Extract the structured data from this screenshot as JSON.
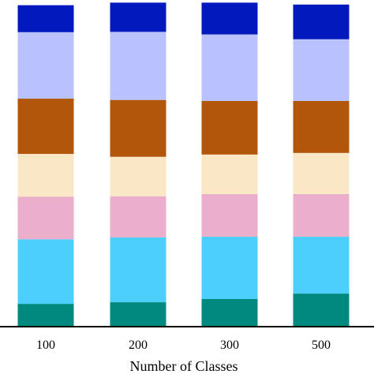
{
  "chart_data": {
    "type": "bar",
    "stacked": true,
    "title": "",
    "xlabel": "Number of Classes",
    "ylabel": "",
    "categories": [
      "100",
      "200",
      "300",
      "500"
    ],
    "ylim": [
      0,
      100
    ],
    "grid": false,
    "legend": "none",
    "series": [
      {
        "color": "#00897F",
        "values": [
          7.1,
          7.6,
          8.6,
          10.3
        ]
      },
      {
        "color": "#4CCFFD",
        "values": [
          20.1,
          20.2,
          19.4,
          17.7
        ]
      },
      {
        "color": "#EBAECB",
        "values": [
          13.3,
          12.8,
          13.3,
          13.3
        ]
      },
      {
        "color": "#F9E7C6",
        "values": [
          13.3,
          12.3,
          12.3,
          12.8
        ]
      },
      {
        "color": "#B2560B",
        "values": [
          17.2,
          17.7,
          16.7,
          16.2
        ]
      },
      {
        "color": "#B9C2FC",
        "values": [
          20.7,
          21.2,
          20.7,
          19.2
        ]
      },
      {
        "color": "#0119BD",
        "values": [
          8.4,
          9.1,
          9.9,
          10.8
        ]
      }
    ]
  }
}
